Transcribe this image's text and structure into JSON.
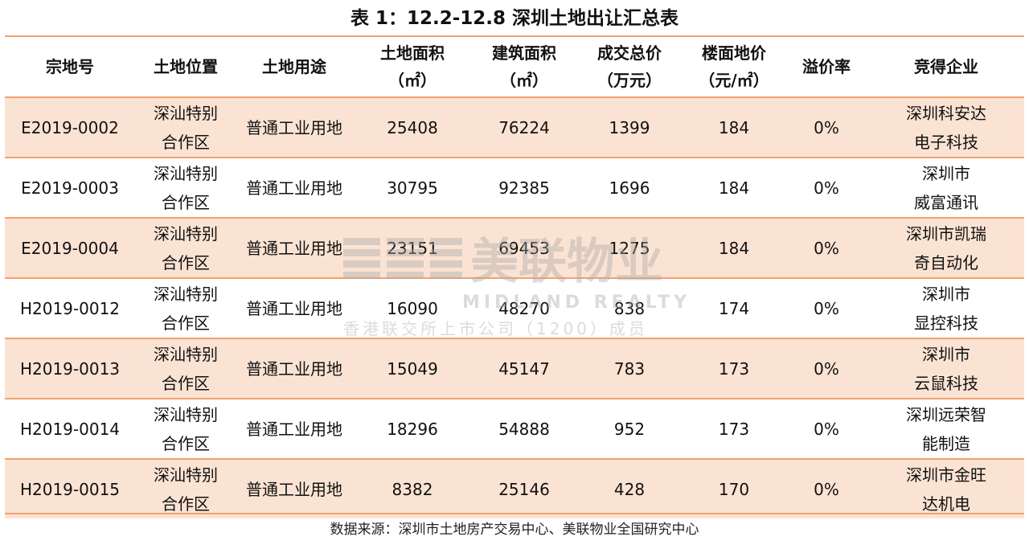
{
  "title": "表 1：12.2-12.8 深圳土地出让汇总表",
  "columns": [
    {
      "line1": "宗地号",
      "line2": ""
    },
    {
      "line1": "土地位置",
      "line2": ""
    },
    {
      "line1": "土地用途",
      "line2": ""
    },
    {
      "line1": "土地面积",
      "line2": "（㎡）"
    },
    {
      "line1": "建筑面积",
      "line2": "（㎡）"
    },
    {
      "line1": "成交总价",
      "line2": "（万元）"
    },
    {
      "line1": "楼面地价",
      "line2": "（元/㎡）"
    },
    {
      "line1": "溢价率",
      "line2": ""
    },
    {
      "line1": "竞得企业",
      "line2": ""
    }
  ],
  "rows": [
    {
      "id": "E2019-0002",
      "loc1": "深汕特别",
      "loc2": "合作区",
      "use": "普通工业用地",
      "land_area": "25408",
      "build_area": "76224",
      "price": "1399",
      "floor_price": "184",
      "premium": "0%",
      "co1": "深圳科安达",
      "co2": "电子科技"
    },
    {
      "id": "E2019-0003",
      "loc1": "深汕特别",
      "loc2": "合作区",
      "use": "普通工业用地",
      "land_area": "30795",
      "build_area": "92385",
      "price": "1696",
      "floor_price": "184",
      "premium": "0%",
      "co1": "深圳市",
      "co2": "威富通讯"
    },
    {
      "id": "E2019-0004",
      "loc1": "深汕特别",
      "loc2": "合作区",
      "use": "普通工业用地",
      "land_area": "23151",
      "build_area": "69453",
      "price": "1275",
      "floor_price": "184",
      "premium": "0%",
      "co1": "深圳市凯瑞",
      "co2": "奇自动化"
    },
    {
      "id": "H2019-0012",
      "loc1": "深汕特别",
      "loc2": "合作区",
      "use": "普通工业用地",
      "land_area": "16090",
      "build_area": "48270",
      "price": "838",
      "floor_price": "174",
      "premium": "0%",
      "co1": "深圳市",
      "co2": "显控科技"
    },
    {
      "id": "H2019-0013",
      "loc1": "深汕特别",
      "loc2": "合作区",
      "use": "普通工业用地",
      "land_area": "15049",
      "build_area": "45147",
      "price": "783",
      "floor_price": "173",
      "premium": "0%",
      "co1": "深圳市",
      "co2": "云鼠科技"
    },
    {
      "id": "H2019-0014",
      "loc1": "深汕特别",
      "loc2": "合作区",
      "use": "普通工业用地",
      "land_area": "18296",
      "build_area": "54888",
      "price": "952",
      "floor_price": "173",
      "premium": "0%",
      "co1": "深圳远荣智",
      "co2": "能制造"
    },
    {
      "id": "H2019-0015",
      "loc1": "深汕特别",
      "loc2": "合作区",
      "use": "普通工业用地",
      "land_area": "8382",
      "build_area": "25146",
      "price": "428",
      "floor_price": "170",
      "premium": "0%",
      "co1": "深圳市金旺",
      "co2": "达机电"
    }
  ],
  "source": "数据来源：深圳市土地房产交易中心、美联物业全国研究中心",
  "watermark": {
    "name_cn": "美联物业",
    "name_en": "MIDLAND REALTY",
    "tagline": "香港联交所上市公司（1200）成员"
  },
  "colors": {
    "rule": "#f3a26f",
    "shade": "#fbe3d3"
  }
}
